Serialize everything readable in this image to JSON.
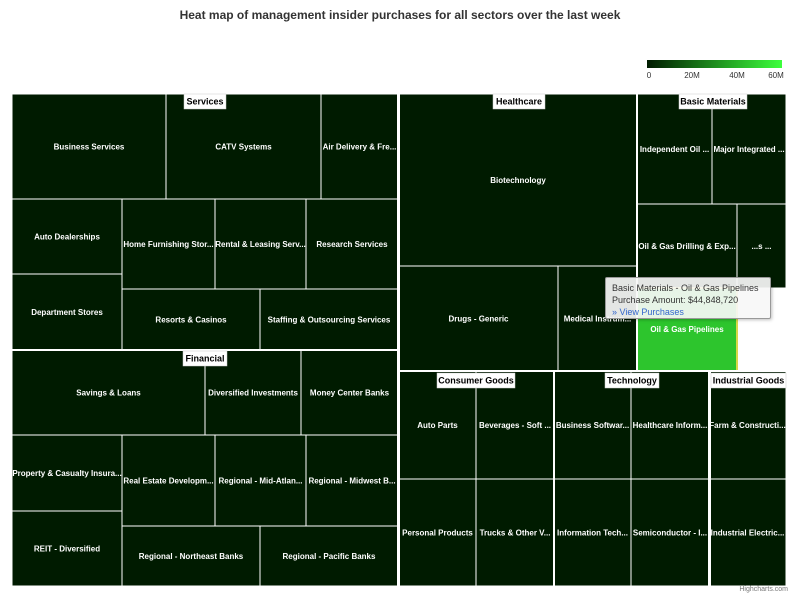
{
  "title": "Heat map of management insider purchases for all sectors over the last week",
  "legend": {
    "ticks": [
      "0",
      "20M",
      "40M",
      "60M"
    ],
    "min": 0,
    "max": 60000000,
    "color_min": "#001b00",
    "color_max": "#3cff3c"
  },
  "tooltip": {
    "header": "Basic Materials - Oil & Gas Pipelines",
    "amount": "Purchase Amount: $44,848,720",
    "link": "» View Purchases"
  },
  "credits": "Highcharts.com",
  "chart_data": {
    "type": "heatmap",
    "title": "Heat map of management insider purchases for all sectors over the last week",
    "value_label": "Purchase Amount",
    "colorscale": {
      "min": 0,
      "max": 60000000,
      "min_color": "#001b00",
      "max_color": "#3cff3c"
    },
    "sectors": [
      {
        "name": "Services",
        "industries": [
          {
            "name": "Business Services",
            "value": 0
          },
          {
            "name": "CATV Systems",
            "value": 0
          },
          {
            "name": "Air Delivery & Fre...",
            "value": 0
          },
          {
            "name": "Auto Dealerships",
            "value": 0
          },
          {
            "name": "Home Furnishing Stor...",
            "value": 0
          },
          {
            "name": "Rental & Leasing Serv...",
            "value": 0
          },
          {
            "name": "Research Services",
            "value": 0
          },
          {
            "name": "Department Stores",
            "value": 0
          },
          {
            "name": "Resorts & Casinos",
            "value": 0
          },
          {
            "name": "Staffing & Outsourcing Services",
            "value": 0
          }
        ]
      },
      {
        "name": "Financial",
        "industries": [
          {
            "name": "Savings & Loans",
            "value": 0
          },
          {
            "name": "Diversified Investments",
            "value": 0
          },
          {
            "name": "Money Center Banks",
            "value": 0
          },
          {
            "name": "Property & Casualty Insura...",
            "value": 0
          },
          {
            "name": "Real Estate Developm...",
            "value": 0
          },
          {
            "name": "Regional - Mid-Atlan...",
            "value": 0
          },
          {
            "name": "Regional - Midwest B...",
            "value": 0
          },
          {
            "name": "REIT - Diversified",
            "value": 0
          },
          {
            "name": "Regional - Northeast Banks",
            "value": 0
          },
          {
            "name": "Regional - Pacific Banks",
            "value": 0
          }
        ]
      },
      {
        "name": "Healthcare",
        "industries": [
          {
            "name": "Biotechnology",
            "value": 0
          },
          {
            "name": "Drugs - Generic",
            "value": 0
          },
          {
            "name": "Medical Instrum...",
            "value": 0
          }
        ]
      },
      {
        "name": "Basic Materials",
        "industries": [
          {
            "name": "Independent Oil ...",
            "value": 0
          },
          {
            "name": "Major Integrated ...",
            "value": 0
          },
          {
            "name": "Oil & Gas Drilling & Exp...",
            "value": 0
          },
          {
            "name": "...s ...",
            "value": 0
          },
          {
            "name": "Oil & Gas Pipelines",
            "value": 44848720
          }
        ]
      },
      {
        "name": "Consumer Goods",
        "industries": [
          {
            "name": "Auto Parts",
            "value": 0
          },
          {
            "name": "Beverages - Soft ...",
            "value": 0
          },
          {
            "name": "Personal Products",
            "value": 0
          },
          {
            "name": "Trucks & Other V...",
            "value": 0
          }
        ]
      },
      {
        "name": "Technology",
        "industries": [
          {
            "name": "Business Softwar...",
            "value": 0
          },
          {
            "name": "Healthcare Inform...",
            "value": 0
          },
          {
            "name": "Information Tech...",
            "value": 0
          },
          {
            "name": "Semiconductor - I...",
            "value": 0
          }
        ]
      },
      {
        "name": "Industrial Goods",
        "industries": [
          {
            "name": "Farm & Constructi...",
            "value": 0
          },
          {
            "name": "Industrial Electric...",
            "value": 0
          }
        ]
      }
    ]
  }
}
